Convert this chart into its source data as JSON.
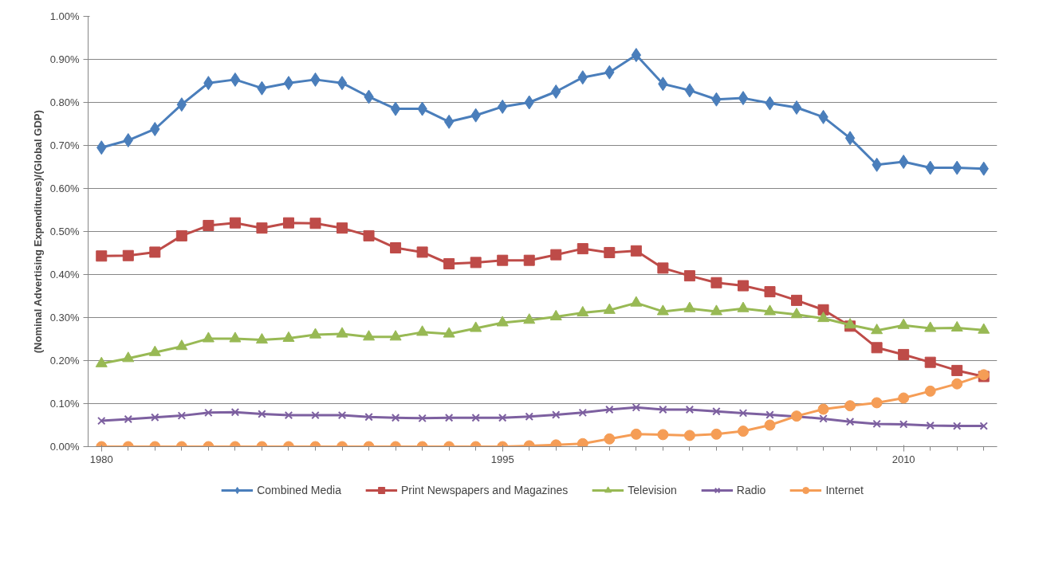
{
  "chart_data": {
    "type": "line",
    "ylabel": "(Nominal Advertising Expenditures)/(Global GDP)",
    "x": [
      1980,
      1981,
      1982,
      1983,
      1984,
      1985,
      1986,
      1987,
      1988,
      1989,
      1990,
      1991,
      1992,
      1993,
      1994,
      1995,
      1996,
      1997,
      1998,
      1999,
      2000,
      2001,
      2002,
      2003,
      2004,
      2005,
      2006,
      2007,
      2008,
      2009,
      2010,
      2011,
      2012,
      2013
    ],
    "xlim": [
      1979.5,
      2013.5
    ],
    "xticks": [
      1980,
      1995,
      2010
    ],
    "ylim": [
      0,
      1.0
    ],
    "yticks": [
      {
        "value": 0,
        "label": "0.00%"
      },
      {
        "value": 0.1,
        "label": "0.10%"
      },
      {
        "value": 0.2,
        "label": "0.20%"
      },
      {
        "value": 0.3,
        "label": "0.30%"
      },
      {
        "value": 0.4,
        "label": "0.40%"
      },
      {
        "value": 0.5,
        "label": "0.50%"
      },
      {
        "value": 0.6,
        "label": "0.60%"
      },
      {
        "value": 0.7,
        "label": "0.70%"
      },
      {
        "value": 0.8,
        "label": "0.80%"
      },
      {
        "value": 0.9,
        "label": "0.90%"
      },
      {
        "value": 1.0,
        "label": "1.00%"
      }
    ],
    "grid": "y",
    "legend": "bottom",
    "series": [
      {
        "name": "Combined Media",
        "color": "#4a7ebb",
        "marker": "diamond",
        "values": [
          0.695,
          0.712,
          0.738,
          0.795,
          0.845,
          0.853,
          0.833,
          0.845,
          0.853,
          0.845,
          0.813,
          0.785,
          0.785,
          0.755,
          0.77,
          0.79,
          0.8,
          0.825,
          0.858,
          0.87,
          0.91,
          0.843,
          0.828,
          0.807,
          0.81,
          0.798,
          0.788,
          0.766,
          0.717,
          0.655,
          0.662,
          0.648,
          0.648,
          0.646
        ]
      },
      {
        "name": "Print Newspapers and Magazines",
        "color": "#be4b48",
        "marker": "square",
        "values": [
          0.443,
          0.444,
          0.452,
          0.49,
          0.514,
          0.52,
          0.508,
          0.52,
          0.519,
          0.508,
          0.49,
          0.462,
          0.452,
          0.425,
          0.428,
          0.433,
          0.433,
          0.446,
          0.46,
          0.451,
          0.455,
          0.415,
          0.397,
          0.381,
          0.374,
          0.36,
          0.34,
          0.318,
          0.28,
          0.23,
          0.214,
          0.196,
          0.177,
          0.163
        ]
      },
      {
        "name": "Television",
        "color": "#98b954",
        "marker": "triangle",
        "values": [
          0.193,
          0.205,
          0.219,
          0.233,
          0.251,
          0.251,
          0.248,
          0.252,
          0.26,
          0.262,
          0.255,
          0.255,
          0.266,
          0.262,
          0.275,
          0.288,
          0.294,
          0.302,
          0.311,
          0.317,
          0.334,
          0.314,
          0.321,
          0.314,
          0.321,
          0.314,
          0.307,
          0.298,
          0.283,
          0.27,
          0.282,
          0.275,
          0.276,
          0.271
        ]
      },
      {
        "name": "Radio",
        "color": "#7d60a0",
        "marker": "cross",
        "values": [
          0.06,
          0.064,
          0.068,
          0.072,
          0.079,
          0.08,
          0.076,
          0.073,
          0.073,
          0.073,
          0.069,
          0.067,
          0.066,
          0.067,
          0.067,
          0.067,
          0.07,
          0.074,
          0.079,
          0.086,
          0.091,
          0.086,
          0.086,
          0.082,
          0.078,
          0.074,
          0.07,
          0.065,
          0.058,
          0.053,
          0.052,
          0.049,
          0.048,
          0.048
        ]
      },
      {
        "name": "Internet",
        "color": "#f59d56",
        "marker": "circle",
        "values": [
          0,
          0,
          0,
          0,
          0,
          0,
          0,
          0,
          0,
          0,
          0,
          0,
          0,
          0,
          0,
          0,
          0.002,
          0.004,
          0.007,
          0.018,
          0.029,
          0.028,
          0.026,
          0.029,
          0.036,
          0.05,
          0.071,
          0.087,
          0.095,
          0.102,
          0.113,
          0.129,
          0.146,
          0.167
        ]
      }
    ]
  }
}
